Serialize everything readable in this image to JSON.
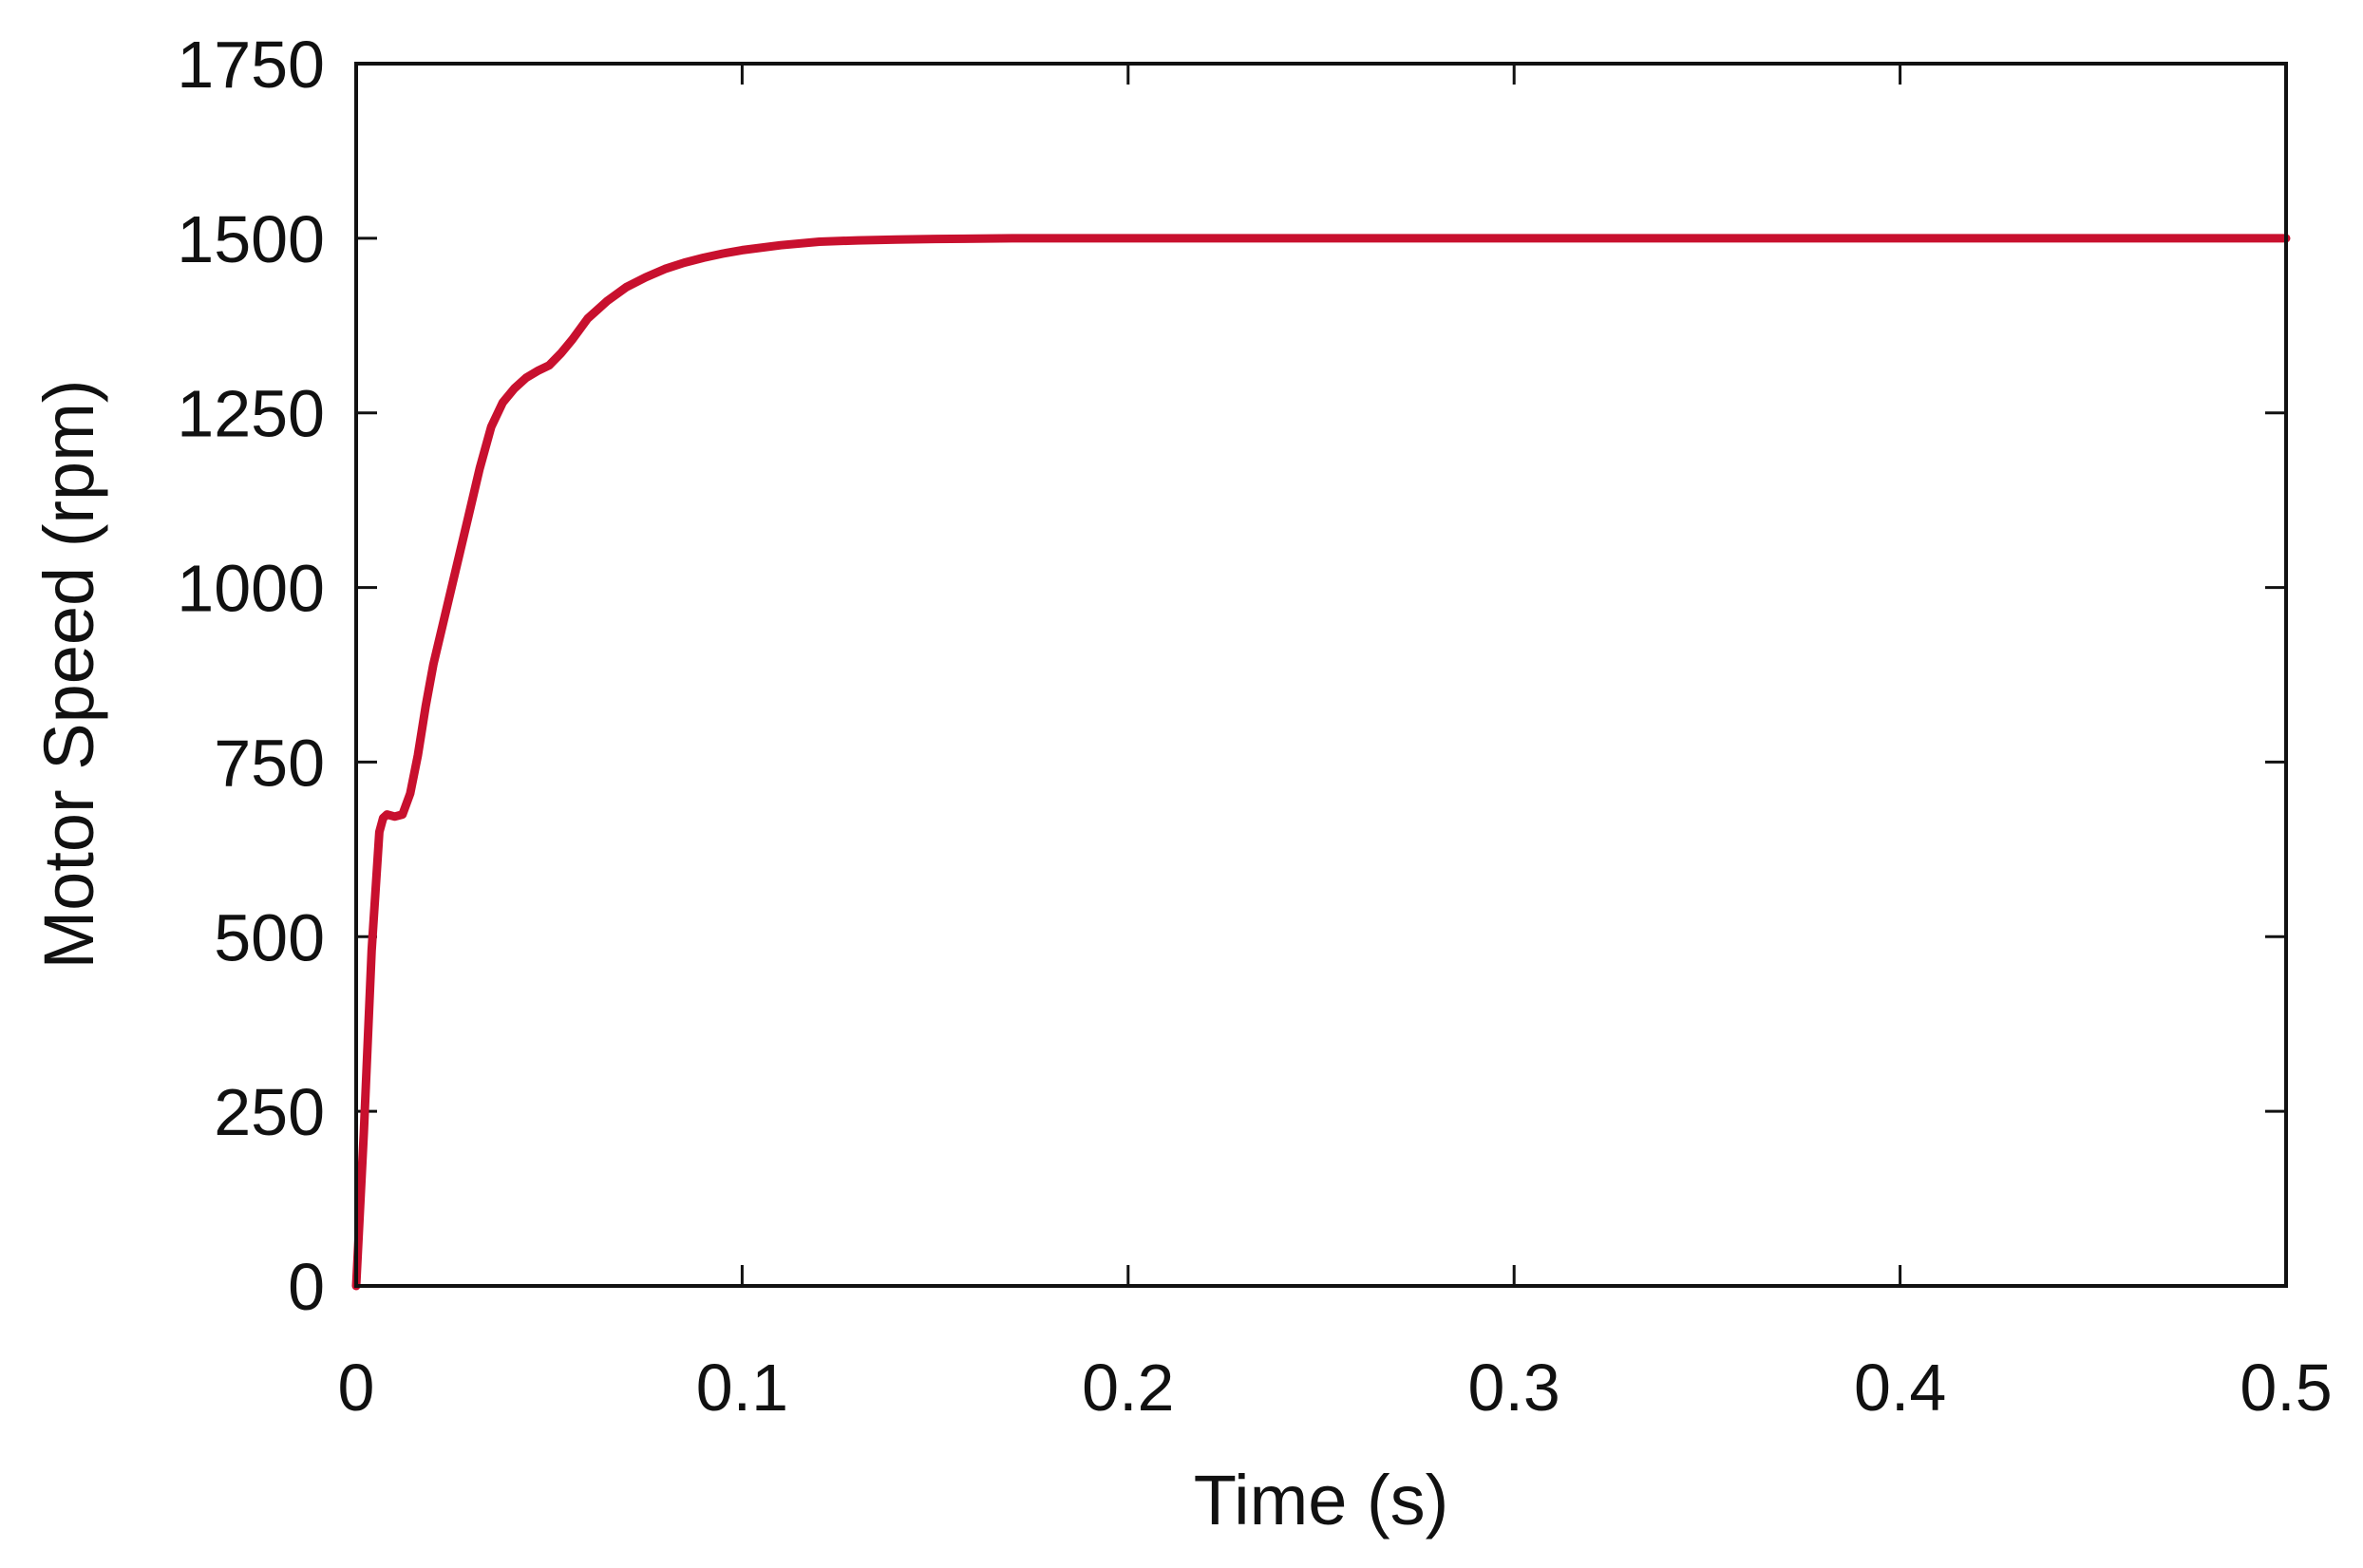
{
  "colors": {
    "line": "#c8102e",
    "axis": "#111111",
    "background": "#ffffff"
  },
  "chart_data": {
    "type": "line",
    "title": "",
    "xlabel": "Time (s)",
    "ylabel": "Motor Speed (rpm)",
    "xlim": [
      0,
      0.5
    ],
    "ylim": [
      0,
      1750
    ],
    "x_ticks": [
      0,
      0.1,
      0.2,
      0.3,
      0.4,
      0.5
    ],
    "x_tick_labels": [
      "0",
      "0.1",
      "0.2",
      "0.3",
      "0.4",
      "0.5"
    ],
    "y_ticks": [
      0,
      250,
      500,
      750,
      1000,
      1250,
      1500,
      1750
    ],
    "y_tick_labels": [
      "0",
      "250",
      "500",
      "750",
      "1000",
      "1250",
      "1500",
      "1750"
    ],
    "grid": false,
    "legend": "none",
    "series": [
      {
        "color": "#c8102e",
        "x": [
          0,
          0.002,
          0.004,
          0.006,
          0.007,
          0.008,
          0.01,
          0.012,
          0.014,
          0.016,
          0.018,
          0.02,
          0.023,
          0.026,
          0.029,
          0.032,
          0.035,
          0.038,
          0.041,
          0.044,
          0.047,
          0.05,
          0.053,
          0.056,
          0.06,
          0.065,
          0.07,
          0.075,
          0.08,
          0.085,
          0.09,
          0.095,
          0.1,
          0.11,
          0.12,
          0.13,
          0.14,
          0.15,
          0.17,
          0.2,
          0.25,
          0.3,
          0.35,
          0.4,
          0.45,
          0.5
        ],
        "values": [
          0,
          220,
          480,
          650,
          670,
          675,
          672,
          675,
          705,
          760,
          830,
          890,
          960,
          1030,
          1100,
          1170,
          1230,
          1265,
          1285,
          1300,
          1310,
          1318,
          1335,
          1355,
          1385,
          1410,
          1430,
          1444,
          1456,
          1465,
          1472,
          1478,
          1483,
          1490,
          1495,
          1497,
          1498,
          1499,
          1500,
          1500,
          1500,
          1500,
          1500,
          1500,
          1500,
          1500
        ]
      }
    ]
  }
}
